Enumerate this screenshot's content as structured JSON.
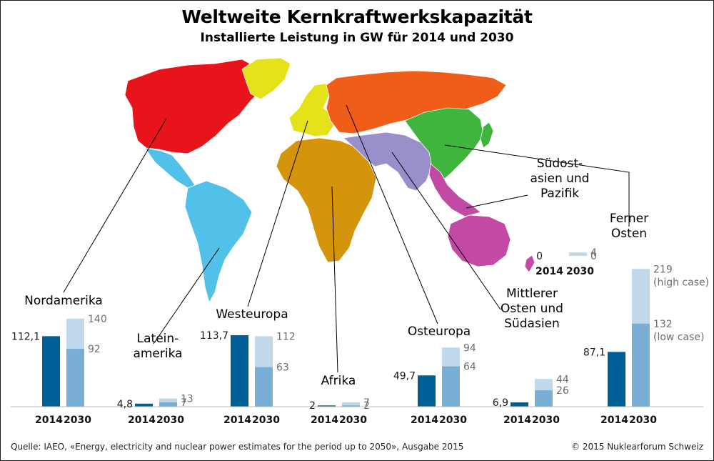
{
  "title": "Weltweite Kernkraftwerkskapazität",
  "subtitle": "Installierte Leistung in GW für 2014 und 2030",
  "footer": {
    "source": "Quelle: IAEO, «Energy, electricity and nuclear power estimates for the period up to 2050», Ausgabe 2015",
    "copyright": "© 2015 Nuklearforum Schweiz"
  },
  "colors": {
    "bar2014": "#005f96",
    "bar2030_low": "#79afd6",
    "bar2030_high": "#bfd8ec",
    "map_nordamerika": "#e8141c",
    "map_lateinamerika": "#52c1e9",
    "map_westeuropa": "#e6e21a",
    "map_osteuropa": "#ef5d19",
    "map_afrika": "#d4940c",
    "map_mittlerer_osten": "#9b8fcb",
    "map_ferner_osten": "#3fb53e",
    "map_suedostasien": "#c34aa4"
  },
  "chart_data": {
    "type": "bar",
    "title": "Weltweite Kernkraftwerkskapazität",
    "subtitle": "Installierte Leistung in GW für 2014 und 2030",
    "unit": "GW",
    "categories": [
      "2014",
      "2030"
    ],
    "regions": [
      {
        "key": "nordamerika",
        "name_lines": [
          "Nordamerika"
        ],
        "v2014": 112.1,
        "low2030": 92,
        "high2030": 140,
        "label2014": "112,1",
        "label_low": "92",
        "label_high": "140"
      },
      {
        "key": "lateinamerika",
        "name_lines": [
          "Latein-",
          "amerika"
        ],
        "v2014": 4.8,
        "low2030": 7,
        "high2030": 13,
        "label2014": "4,8",
        "label_low": "7",
        "label_high": "13"
      },
      {
        "key": "westeuropa",
        "name_lines": [
          "Westeuropa"
        ],
        "v2014": 113.7,
        "low2030": 63,
        "high2030": 112,
        "label2014": "113,7",
        "label_low": "63",
        "label_high": "112"
      },
      {
        "key": "afrika",
        "name_lines": [
          "Afrika"
        ],
        "v2014": 2,
        "low2030": 2,
        "high2030": 7,
        "label2014": "2",
        "label_low": "2",
        "label_high": "7"
      },
      {
        "key": "osteuropa",
        "name_lines": [
          "Osteuropa"
        ],
        "v2014": 49.7,
        "low2030": 64,
        "high2030": 94,
        "label2014": "49,7",
        "label_low": "64",
        "label_high": "94"
      },
      {
        "key": "mittlerer_osten",
        "name_lines": [
          "Mittlerer",
          "Osten und",
          "Südasien"
        ],
        "v2014": 6.9,
        "low2030": 26,
        "high2030": 44,
        "label2014": "6,9",
        "label_low": "26",
        "label_high": "44"
      },
      {
        "key": "ferner_osten",
        "name_lines": [
          "Ferner",
          "Osten"
        ],
        "v2014": 87.1,
        "low2030": 132,
        "high2030": 219,
        "label2014": "87,1",
        "label_low": "132",
        "label_high": "219",
        "note_high": "(high case)",
        "note_low": "(low case)"
      },
      {
        "key": "suedostasien",
        "name_lines": [
          "Südost-",
          "asien und",
          "Pazifik"
        ],
        "v2014": 0,
        "low2030": 0,
        "high2030": 4,
        "label2014": "0",
        "label_low": "0",
        "label_high": "4"
      }
    ]
  }
}
